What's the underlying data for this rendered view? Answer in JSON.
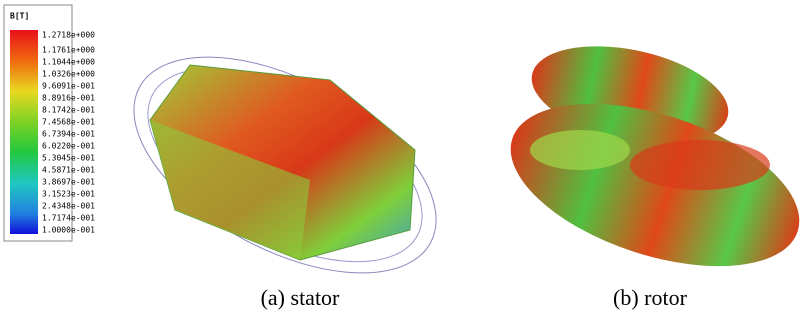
{
  "legend": {
    "title": "B[T]",
    "labels": [
      "1.2718e+000",
      "1.1761e+000",
      "1.1044e+000",
      "1.0326e+000",
      "9.6091e-001",
      "8.8916e-001",
      "8.1742e-001",
      "7.4568e-001",
      "6.7394e-001",
      "6.0220e-001",
      "5.3045e-001",
      "4.5871e-001",
      "3.8697e-001",
      "3.1523e-001",
      "2.4348e-001",
      "1.7174e-001",
      "1.0000e-001"
    ]
  },
  "captions": [
    "(a) stator",
    "(b) rotor"
  ]
}
